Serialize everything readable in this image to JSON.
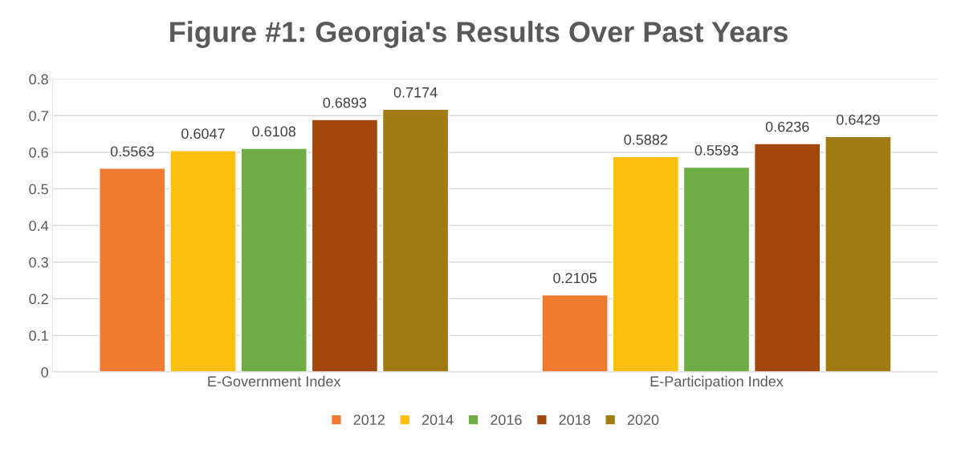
{
  "chart_data": {
    "type": "bar",
    "title": "Figure #1: Georgia's Results Over Past Years",
    "categories": [
      "E-Government Index",
      "E-Participation Index"
    ],
    "series": [
      {
        "name": "2012",
        "color": "#ee7b30",
        "values": [
          0.5563,
          0.2105
        ]
      },
      {
        "name": "2014",
        "color": "#fbbf12",
        "values": [
          0.6047,
          0.5882
        ]
      },
      {
        "name": "2016",
        "color": "#70ad47",
        "values": [
          0.6108,
          0.5593
        ]
      },
      {
        "name": "2018",
        "color": "#a3470f",
        "values": [
          0.6893,
          0.6236
        ]
      },
      {
        "name": "2020",
        "color": "#a07a12",
        "values": [
          0.7174,
          0.6429
        ]
      }
    ],
    "ylim": [
      0,
      0.8
    ],
    "yticks": [
      0,
      0.1,
      0.2,
      0.3,
      0.4,
      0.5,
      0.6,
      0.7,
      0.8
    ],
    "grid": "y",
    "legend": "bottom",
    "data_labels": true
  }
}
